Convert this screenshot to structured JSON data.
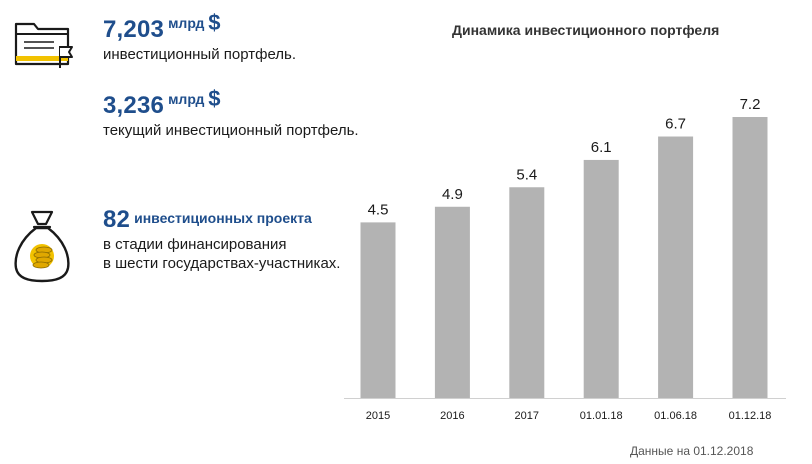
{
  "stats": [
    {
      "value": "7,203",
      "unit": "млрд",
      "currency": "$",
      "desc": "инвестиционный портфель."
    },
    {
      "value": "3,236",
      "unit": "млрд",
      "currency": "$",
      "desc": "текущий инвестиционный портфель."
    },
    {
      "value": "82",
      "unit": "инвестиционных проекта",
      "desc_lines": [
        "в стадии финансирования",
        "в шести государствах-участниках."
      ]
    }
  ],
  "icons": {
    "folder": "folder-flag-icon",
    "bag": "money-bag-icon"
  },
  "colors": {
    "accent": "#1f4e8c",
    "bar": "#b3b3b3",
    "icon_yellow": "#f2c200"
  },
  "chart_data": {
    "type": "bar",
    "title": "Динамика инвестиционного портфеля",
    "categories": [
      "2015",
      "2016",
      "2017",
      "01.01.18",
      "01.06.18",
      "01.12.18"
    ],
    "values": [
      4.5,
      4.9,
      5.4,
      6.1,
      6.7,
      7.2
    ],
    "value_labels": [
      "4.5",
      "4.9",
      "5.4",
      "6.1",
      "6.7",
      "7.2"
    ],
    "ylim": [
      0,
      7.2
    ],
    "grid": false,
    "legend": "none"
  },
  "footnote": "Данные на 01.12.2018"
}
